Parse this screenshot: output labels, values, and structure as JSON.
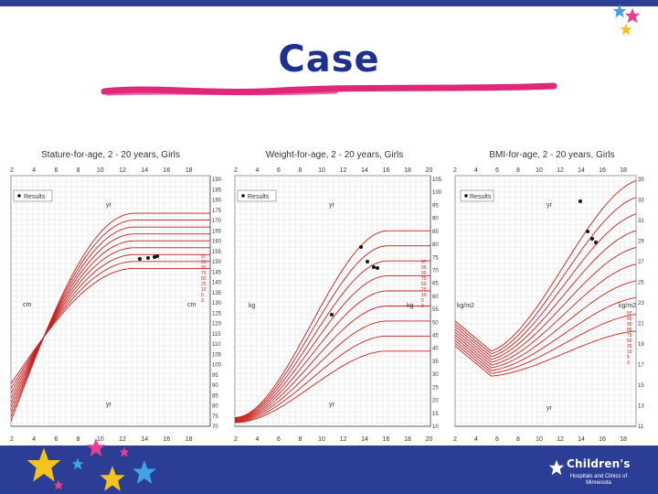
{
  "slide": {
    "title": "Case"
  },
  "colors": {
    "top_bar": "#2c3d96",
    "title": "#1e2f8f",
    "swoosh": "#e0287a",
    "curves": "#c8201e",
    "footer": "#2c3d96",
    "star_yellow": "#f6c21c",
    "star_pink": "#e63f8e",
    "star_blue": "#3fa3e6"
  },
  "charts": [
    {
      "title": "Stature-for-age, 2 - 20 years, Girls",
      "legend": "Results",
      "x_ticks": [
        "2",
        "4",
        "6",
        "8",
        "10",
        "12",
        "14",
        "16",
        "18"
      ],
      "left_unit": "cm",
      "right_unit": "cm",
      "top_unit": "yr",
      "bottom_unit": "yr",
      "right_ticks": [
        "190",
        "185",
        "180",
        "175",
        "170",
        "165",
        "160",
        "155",
        "150",
        "145",
        "140",
        "135",
        "130",
        "125",
        "120",
        "115",
        "110",
        "105",
        "100",
        "95",
        "90",
        "85",
        "80",
        "75",
        "70"
      ],
      "percentile_labels": [
        "97",
        "95",
        "90",
        "75",
        "50",
        "25",
        "10",
        "5",
        "3"
      ]
    },
    {
      "title": "Weight-for-age, 2 - 20 years, Girls",
      "legend": "Results",
      "x_ticks": [
        "2",
        "4",
        "6",
        "8",
        "10",
        "12",
        "14",
        "16",
        "18",
        "20"
      ],
      "left_unit": "kg",
      "right_unit": "kg",
      "top_unit": "yr",
      "bottom_unit": "yr",
      "right_ticks": [
        "105",
        "100",
        "95",
        "90",
        "85",
        "80",
        "75",
        "70",
        "65",
        "60",
        "55",
        "50",
        "45",
        "40",
        "35",
        "30",
        "25",
        "20",
        "15",
        "10"
      ],
      "percentile_labels": [
        "97",
        "95",
        "90",
        "75",
        "50",
        "25",
        "10",
        "5",
        "3"
      ]
    },
    {
      "title": "BMI-for-age, 2 - 20 years, Girls",
      "legend": "Results",
      "x_ticks": [
        "2",
        "4",
        "6",
        "8",
        "10",
        "12",
        "14",
        "16",
        "18"
      ],
      "left_unit": "kg/m2",
      "right_unit": "kg/m2",
      "top_unit": "yr",
      "bottom_unit": "yr",
      "right_ticks": [
        "35",
        "33",
        "31",
        "29",
        "27",
        "25",
        "23",
        "21",
        "19",
        "17",
        "15",
        "13",
        "11"
      ],
      "percentile_labels": [
        "97",
        "95",
        "90",
        "85",
        "75",
        "50",
        "25",
        "10",
        "5",
        "3"
      ]
    }
  ],
  "logo": {
    "name": "Children's",
    "subtitle": "Hospitals and Clinics of Minnesota"
  }
}
